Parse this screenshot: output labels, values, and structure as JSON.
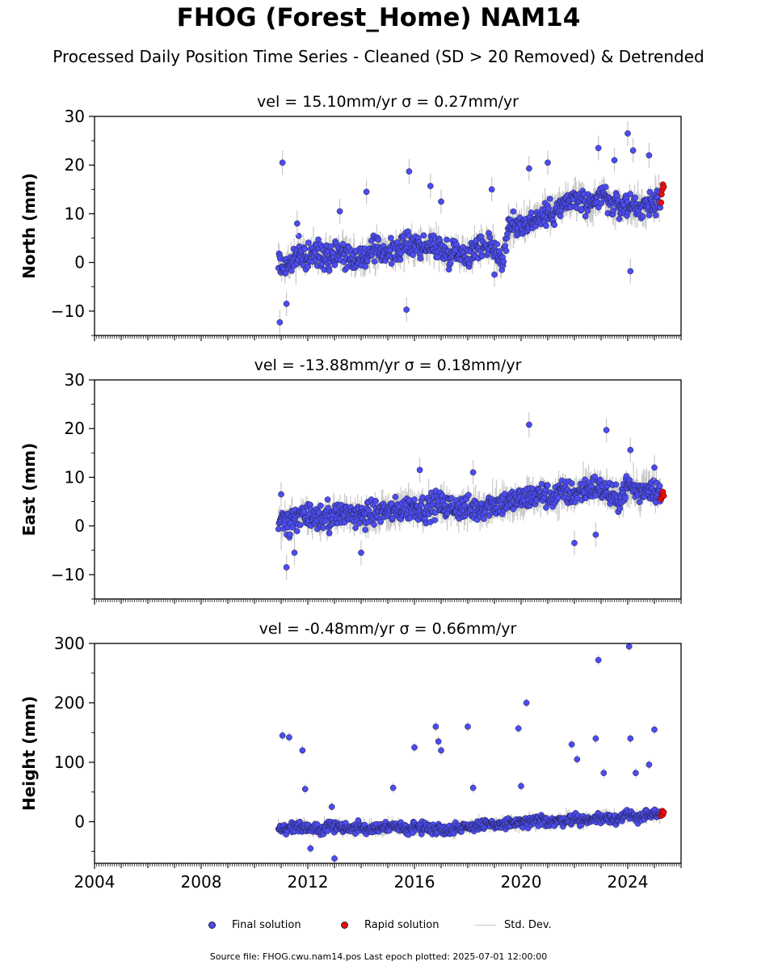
{
  "figure": {
    "title": "FHOG (Forest_Home) NAM14",
    "subtitle": "Processed Daily Position Time Series - Cleaned (SD > 20 Removed) & Detrended",
    "footer": "Source file: FHOG.cwu.nam14.pos  Last epoch plotted: 2025-07-01 12:00:00"
  },
  "legend": {
    "final_label": "Final solution",
    "rapid_label": "Rapid solution",
    "sd_label": "Std. Dev."
  },
  "colors": {
    "final": "#4c4cf0",
    "rapid": "#e81010",
    "sd": "#c8c8c8",
    "marker_edge": "#1e1e3c"
  },
  "chart_data": [
    {
      "type": "scatter",
      "panel": "north",
      "title": "vel = 15.10mm/yr   σ = 0.27mm/yr",
      "ylabel": "North (mm)",
      "xlim": [
        2004.0,
        2026.0
      ],
      "ylim": [
        -15,
        30
      ],
      "yticks": [
        -10,
        0,
        10,
        20,
        30
      ],
      "ytick_labels": [
        "−10",
        "0",
        "10",
        "20",
        "30"
      ],
      "xticks": [
        2004,
        2008,
        2012,
        2016,
        2020,
        2024
      ],
      "xtick_labels": [],
      "series": [
        {
          "role": "final",
          "x": [
            2010.9,
            2011.0,
            2011.3,
            2011.6,
            2012.0,
            2012.4,
            2012.8,
            2013.2,
            2013.6,
            2014.0,
            2014.4,
            2014.8,
            2015.2,
            2015.6,
            2016.0,
            2016.4,
            2016.8,
            2017.2,
            2017.6,
            2018.0,
            2018.4,
            2018.8,
            2019.0,
            2019.3,
            2019.5,
            2019.8,
            2020.2,
            2020.6,
            2021.0,
            2021.4,
            2021.8,
            2022.2,
            2022.6,
            2023.0,
            2023.4,
            2023.8,
            2024.2,
            2024.6,
            2025.0,
            2025.2
          ],
          "y": [
            0.5,
            -1.0,
            -0.5,
            1.5,
            1.0,
            2.0,
            1.5,
            2.5,
            1.0,
            1.0,
            2.0,
            2.5,
            2.0,
            3.5,
            4.0,
            3.0,
            3.5,
            2.0,
            2.5,
            1.5,
            3.0,
            4.0,
            3.0,
            0.0,
            7.0,
            7.5,
            8.0,
            9.0,
            10.0,
            11.0,
            12.5,
            13.0,
            11.0,
            14.0,
            12.0,
            11.5,
            12.0,
            11.0,
            12.5,
            13.0
          ],
          "outlier_x": [
            2011.05,
            2011.2,
            2011.6,
            2010.95,
            2015.8,
            2016.6,
            2017.0,
            2015.7,
            2019.0,
            2020.3,
            2021.0,
            2022.9,
            2023.5,
            2024.0,
            2024.2,
            2024.8,
            2024.1,
            2013.2,
            2014.2,
            2018.9
          ],
          "outlier_y": [
            20.5,
            -8.5,
            8.0,
            -12.3,
            18.7,
            15.7,
            12.5,
            -9.7,
            -2.5,
            19.3,
            20.5,
            23.5,
            21.0,
            26.5,
            23.0,
            22.0,
            -1.8,
            10.5,
            14.5,
            15.0
          ]
        },
        {
          "role": "rapid",
          "x": [
            2025.25,
            2025.27,
            2025.3,
            2025.32,
            2025.35
          ],
          "y": [
            12.3,
            14.0,
            15.0,
            16.0,
            15.5
          ]
        }
      ]
    },
    {
      "type": "scatter",
      "panel": "east",
      "title": "vel = -13.88mm/yr   σ = 0.18mm/yr",
      "ylabel": "East (mm)",
      "xlim": [
        2004.0,
        2026.0
      ],
      "ylim": [
        -15,
        30
      ],
      "yticks": [
        -10,
        0,
        10,
        20,
        30
      ],
      "ytick_labels": [
        "−10",
        "0",
        "10",
        "20",
        "30"
      ],
      "xticks": [
        2004,
        2008,
        2012,
        2016,
        2020,
        2024
      ],
      "xtick_labels": [],
      "series": [
        {
          "role": "final",
          "x": [
            2010.9,
            2011.0,
            2011.3,
            2011.6,
            2012.0,
            2012.4,
            2012.8,
            2013.2,
            2013.6,
            2014.0,
            2014.4,
            2014.8,
            2015.2,
            2015.6,
            2016.0,
            2016.4,
            2016.8,
            2017.2,
            2017.6,
            2018.0,
            2018.4,
            2018.8,
            2019.2,
            2019.6,
            2020.0,
            2020.4,
            2020.8,
            2021.2,
            2021.6,
            2022.0,
            2022.4,
            2022.8,
            2023.2,
            2023.6,
            2024.0,
            2024.4,
            2024.8,
            2025.2
          ],
          "y": [
            0.0,
            0.5,
            1.0,
            1.5,
            2.0,
            1.5,
            2.0,
            2.5,
            2.5,
            2.0,
            2.5,
            3.0,
            3.0,
            3.5,
            4.0,
            3.5,
            4.5,
            4.0,
            4.0,
            3.5,
            3.5,
            4.5,
            4.5,
            5.0,
            5.5,
            6.0,
            6.5,
            6.0,
            7.0,
            6.5,
            7.5,
            8.0,
            7.0,
            5.0,
            8.5,
            7.0,
            8.0,
            7.0
          ],
          "outlier_x": [
            2011.2,
            2011.5,
            2014.0,
            2016.2,
            2018.2,
            2020.3,
            2022.0,
            2022.8,
            2023.2,
            2024.1,
            2025.0,
            2011.0
          ],
          "outlier_y": [
            -8.5,
            -5.5,
            -5.5,
            11.5,
            11.0,
            20.8,
            -3.5,
            -1.8,
            19.7,
            15.6,
            12.0,
            6.5
          ]
        },
        {
          "role": "rapid",
          "x": [
            2025.25,
            2025.27,
            2025.3,
            2025.32,
            2025.35
          ],
          "y": [
            5.5,
            6.0,
            6.5,
            7.0,
            6.2
          ]
        }
      ]
    },
    {
      "type": "scatter",
      "panel": "height",
      "title": "vel = -0.48mm/yr   σ = 0.66mm/yr",
      "ylabel": "Height (mm)",
      "xlim": [
        2004.0,
        2026.0
      ],
      "ylim": [
        -70,
        300
      ],
      "yticks": [
        0,
        100,
        200,
        300
      ],
      "ytick_labels": [
        "0",
        "100",
        "200",
        "300"
      ],
      "xticks": [
        2004,
        2008,
        2012,
        2016,
        2020,
        2024
      ],
      "xtick_labels": [
        "2004",
        "2008",
        "2012",
        "2016",
        "2020",
        "2024"
      ],
      "series": [
        {
          "role": "final",
          "x": [
            2010.9,
            2011.2,
            2011.6,
            2012.0,
            2012.4,
            2012.8,
            2013.2,
            2013.6,
            2014.0,
            2014.4,
            2014.8,
            2015.2,
            2015.6,
            2016.0,
            2016.4,
            2016.8,
            2017.2,
            2017.6,
            2018.0,
            2018.4,
            2018.8,
            2019.2,
            2019.6,
            2020.0,
            2020.4,
            2020.8,
            2021.2,
            2021.6,
            2022.0,
            2022.4,
            2022.8,
            2023.2,
            2023.6,
            2024.0,
            2024.4,
            2024.8,
            2025.2
          ],
          "y": [
            -10,
            -12,
            -8,
            -10,
            -12,
            -8,
            -10,
            -12,
            -9,
            -11,
            -10,
            -8,
            -12,
            -9,
            -10,
            -12,
            -14,
            -10,
            -8,
            -7,
            -6,
            -5,
            -3,
            -2,
            0,
            2,
            0,
            3,
            5,
            2,
            5,
            8,
            5,
            10,
            8,
            12,
            10
          ],
          "outlier_x": [
            2011.05,
            2011.3,
            2011.8,
            2011.9,
            2012.1,
            2016.0,
            2016.8,
            2016.9,
            2017.0,
            2018.0,
            2018.2,
            2019.9,
            2020.0,
            2020.2,
            2021.9,
            2022.1,
            2022.8,
            2022.9,
            2023.1,
            2024.05,
            2024.1,
            2024.3,
            2024.8,
            2025.0,
            2015.2,
            2012.9,
            2013.0
          ],
          "outlier_y": [
            145,
            142,
            120,
            55,
            -45,
            125,
            160,
            135,
            120,
            160,
            57,
            157,
            60,
            200,
            130,
            105,
            140,
            272,
            82,
            295,
            140,
            82,
            96,
            155,
            57,
            25,
            -62
          ]
        },
        {
          "role": "rapid",
          "x": [
            2025.25,
            2025.27,
            2025.3,
            2025.32,
            2025.35
          ],
          "y": [
            10,
            14,
            18,
            12,
            16
          ]
        }
      ]
    }
  ]
}
